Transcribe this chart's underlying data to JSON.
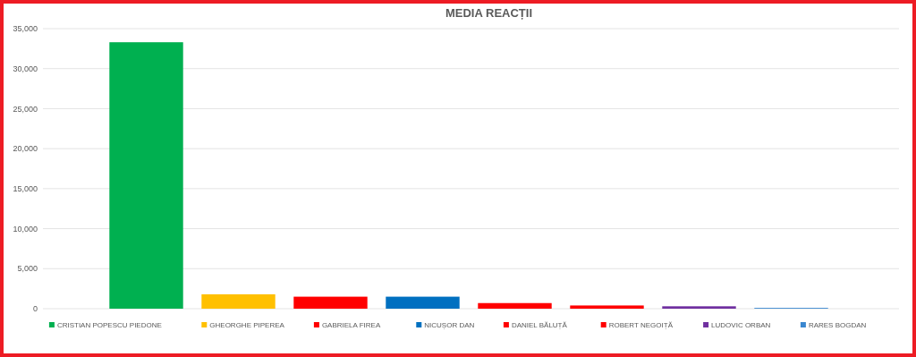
{
  "chart_data": {
    "type": "bar",
    "title": "MEDIA REACȚII",
    "categories": [
      null,
      null,
      null,
      null,
      null,
      null,
      null,
      null
    ],
    "series": [
      {
        "name": "CRISTIAN POPESCU PIEDONE",
        "color": "#00b050",
        "values": [
          33300,
          null,
          null,
          null,
          null,
          null,
          null,
          null
        ]
      },
      {
        "name": "GHEORGHE PIPEREA",
        "color": "#ffc000",
        "values": [
          null,
          1800,
          null,
          null,
          null,
          null,
          null,
          null
        ]
      },
      {
        "name": "GABRIELA FIREA",
        "color": "#ff0000",
        "values": [
          null,
          null,
          1500,
          null,
          null,
          null,
          null,
          null
        ]
      },
      {
        "name": "NICUȘOR DAN",
        "color": "#0070c0",
        "values": [
          null,
          null,
          null,
          1500,
          null,
          null,
          null,
          null
        ]
      },
      {
        "name": "DANIEL BĂLUȚĂ",
        "color": "#ff0000",
        "values": [
          null,
          null,
          null,
          null,
          700,
          null,
          null,
          null
        ]
      },
      {
        "name": "ROBERT NEGOIȚĂ",
        "color": "#ff0000",
        "values": [
          null,
          null,
          null,
          null,
          null,
          400,
          null,
          null
        ]
      },
      {
        "name": "LUDOVIC ORBAN",
        "color": "#7030a0",
        "values": [
          null,
          null,
          null,
          null,
          null,
          null,
          300,
          null
        ]
      },
      {
        "name": "RARES BOGDAN",
        "color": "#3a87d0",
        "values": [
          null,
          null,
          null,
          null,
          null,
          null,
          null,
          100
        ]
      }
    ],
    "ylim": [
      0,
      35000
    ],
    "yticks": [
      {
        "value": 0,
        "label": "0"
      },
      {
        "value": 5000,
        "label": "5,000"
      },
      {
        "value": 10000,
        "label": "10,000"
      },
      {
        "value": 15000,
        "label": "15,000"
      },
      {
        "value": 20000,
        "label": "20,000"
      },
      {
        "value": 25000,
        "label": "25,000"
      },
      {
        "value": 30000,
        "label": "30,000"
      },
      {
        "value": 35000,
        "label": "35,000"
      }
    ],
    "grid": "y",
    "legend": "bottom"
  }
}
